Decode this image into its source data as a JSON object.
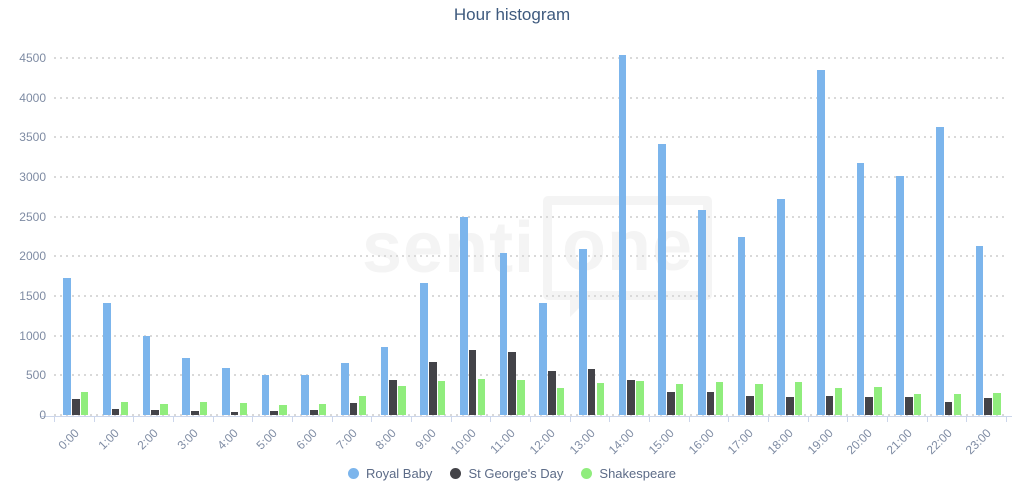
{
  "chart_data": {
    "type": "bar",
    "title": "Hour histogram",
    "xlabel": "",
    "ylabel": "",
    "categories": [
      "0:00",
      "1:00",
      "2:00",
      "3:00",
      "4:00",
      "5:00",
      "6:00",
      "7:00",
      "8:00",
      "9:00",
      "10:00",
      "11:00",
      "12:00",
      "13:00",
      "14:00",
      "15:00",
      "16:00",
      "17:00",
      "18:00",
      "19:00",
      "20:00",
      "21:00",
      "22:00",
      "23:00"
    ],
    "series": [
      {
        "name": "Royal Baby",
        "color": "#7cb5ec",
        "values": [
          1730,
          1410,
          990,
          715,
          590,
          500,
          510,
          660,
          855,
          1665,
          2490,
          2045,
          1410,
          2090,
          4540,
          3420,
          2580,
          2240,
          2720,
          4345,
          3180,
          3010,
          3630,
          2130
        ]
      },
      {
        "name": "St George's Day",
        "color": "#434348",
        "values": [
          200,
          80,
          60,
          45,
          35,
          45,
          60,
          150,
          445,
          670,
          815,
          795,
          560,
          585,
          445,
          290,
          295,
          240,
          230,
          240,
          230,
          230,
          160,
          210
        ]
      },
      {
        "name": "Shakespeare",
        "color": "#90ed7d",
        "values": [
          290,
          165,
          140,
          165,
          150,
          130,
          140,
          240,
          360,
          435,
          450,
          440,
          340,
          405,
          430,
          395,
          410,
          395,
          410,
          335,
          355,
          265,
          270,
          280
        ]
      }
    ],
    "ylim": [
      0,
      4500
    ],
    "yticks": [
      0,
      500,
      1000,
      1500,
      2000,
      2500,
      3000,
      3500,
      4000,
      4500
    ],
    "grid": "horizontal-dotted",
    "legend_position": "bottom-center"
  },
  "watermark": {
    "text_left": "senti",
    "text_boxed": "one"
  },
  "colors": {
    "background": "#ffffff",
    "title_text": "#3e5a7e",
    "axis_label_text": "#7e8ba3",
    "legend_text": "#5c6b87",
    "axis_line": "#ccd6eb",
    "gridline": "#d9d9d9",
    "watermark": "#f4f4f4"
  }
}
